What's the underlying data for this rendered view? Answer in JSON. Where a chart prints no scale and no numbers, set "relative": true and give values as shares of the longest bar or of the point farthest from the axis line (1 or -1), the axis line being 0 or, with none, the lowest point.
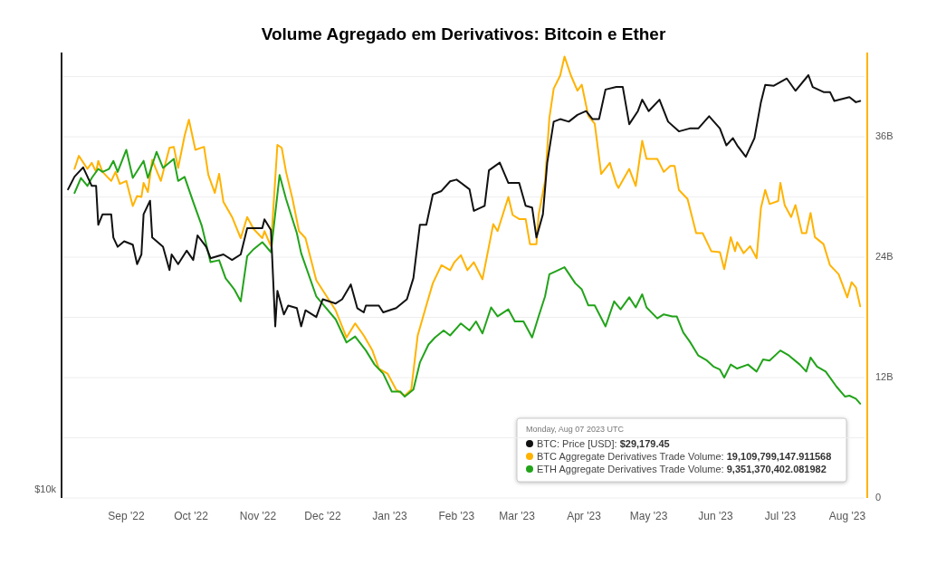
{
  "chart_data": [
    {
      "type": "line",
      "title": "Volume Agregado em Derivativos: Bitcoin e Ether",
      "relative": true,
      "xlim": [
        "2022-08-02",
        "2023-08-09"
      ],
      "legend": "bottom right",
      "legend_title": "Monday, Aug 07 2023 UTC",
      "line_style": "solid",
      "annotations": [
        "$10k",
        "$29,179.45"
      ],
      "series": [
        {
          "name": "BTC: Price [USD]:",
          "color": "#111111",
          "x": [
            "2022-08-05",
            "2022-08-08",
            "2022-08-12",
            "2022-08-16",
            "2022-08-18",
            "2022-08-19",
            "2022-08-21",
            "2022-08-25",
            "2022-08-26",
            "2022-08-28",
            "2022-08-31",
            "2022-09-04",
            "2022-09-06",
            "2022-09-08",
            "2022-09-09",
            "2022-09-12",
            "2022-09-13",
            "2022-09-18",
            "2022-09-21",
            "2022-09-22",
            "2022-09-25",
            "2022-09-29",
            "2022-10-02",
            "2022-10-04",
            "2022-10-08",
            "2022-10-10",
            "2022-10-16",
            "2022-10-20",
            "2022-10-24",
            "2022-10-27",
            "2022-10-30",
            "2022-11-03",
            "2022-11-04",
            "2022-11-07",
            "2022-11-09",
            "2022-11-10",
            "2022-11-13",
            "2022-11-15",
            "2022-11-19",
            "2022-11-21",
            "2022-11-23",
            "2022-11-28",
            "2022-12-01",
            "2022-12-07",
            "2022-12-10",
            "2022-12-14",
            "2022-12-17",
            "2022-12-20",
            "2022-12-21",
            "2022-12-27",
            "2022-12-29",
            "2023-01-04",
            "2023-01-09",
            "2023-01-12",
            "2023-01-15",
            "2023-01-18",
            "2023-01-21",
            "2023-01-25",
            "2023-01-29",
            "2023-02-01",
            "2023-02-07",
            "2023-02-09",
            "2023-02-14",
            "2023-02-16",
            "2023-02-21",
            "2023-02-25",
            "2023-03-02",
            "2023-03-05",
            "2023-03-08",
            "2023-03-10",
            "2023-03-13",
            "2023-03-15",
            "2023-03-18",
            "2023-03-21",
            "2023-03-25",
            "2023-03-29",
            "2023-04-02",
            "2023-04-05",
            "2023-04-08",
            "2023-04-11",
            "2023-04-16",
            "2023-04-19",
            "2023-04-22",
            "2023-04-26",
            "2023-04-28",
            "2023-05-01",
            "2023-05-06",
            "2023-05-10",
            "2023-05-15",
            "2023-05-20",
            "2023-05-24",
            "2023-05-29",
            "2023-06-03",
            "2023-06-06",
            "2023-06-09",
            "2023-06-11",
            "2023-06-15",
            "2023-06-19",
            "2023-06-22",
            "2023-06-24",
            "2023-06-28",
            "2023-07-04",
            "2023-07-08",
            "2023-07-14",
            "2023-07-16",
            "2023-07-21",
            "2023-07-24",
            "2023-07-26",
            "2023-08-02",
            "2023-08-05",
            "2023-08-07"
          ],
          "values": [
            0.73,
            0.76,
            0.782,
            0.738,
            0.738,
            0.646,
            0.671,
            0.671,
            0.616,
            0.594,
            0.607,
            0.599,
            0.553,
            0.576,
            0.671,
            0.703,
            0.616,
            0.594,
            0.539,
            0.576,
            0.553,
            0.585,
            0.563,
            0.621,
            0.594,
            0.567,
            0.576,
            0.563,
            0.576,
            0.638,
            0.638,
            0.638,
            0.659,
            0.634,
            0.406,
            0.49,
            0.434,
            0.455,
            0.449,
            0.406,
            0.444,
            0.428,
            0.47,
            0.46,
            0.47,
            0.505,
            0.449,
            0.439,
            0.455,
            0.455,
            0.439,
            0.449,
            0.47,
            0.52,
            0.646,
            0.646,
            0.718,
            0.726,
            0.749,
            0.753,
            0.73,
            0.679,
            0.691,
            0.775,
            0.793,
            0.745,
            0.745,
            0.691,
            0.687,
            0.616,
            0.671,
            0.793,
            0.89,
            0.896,
            0.89,
            0.906,
            0.915,
            0.896,
            0.896,
            0.966,
            0.972,
            0.972,
            0.884,
            0.915,
            0.942,
            0.915,
            0.942,
            0.89,
            0.867,
            0.874,
            0.874,
            0.903,
            0.874,
            0.834,
            0.851,
            0.834,
            0.807,
            0.851,
            0.936,
            0.977,
            0.975,
            0.992,
            0.963,
            1,
            0.972,
            0.96,
            0.96,
            0.939,
            0.948,
            0.936,
            0.939
          ]
        }
      ]
    },
    {
      "type": "line",
      "xlim": [
        "2022-08-02",
        "2023-08-09"
      ],
      "xticks": [
        {
          "value": "2022-09-01",
          "label": "Sep '22"
        },
        {
          "value": "2022-10-01",
          "label": "Oct '22"
        },
        {
          "value": "2022-11-01",
          "label": "Nov '22"
        },
        {
          "value": "2022-12-01",
          "label": "Dec '22"
        },
        {
          "value": "2023-01-01",
          "label": "Jan '23"
        },
        {
          "value": "2023-02-01",
          "label": "Feb '23"
        },
        {
          "value": "2023-03-01",
          "label": "Mar '23"
        },
        {
          "value": "2023-04-01",
          "label": "Apr '23"
        },
        {
          "value": "2023-05-01",
          "label": "May '23"
        },
        {
          "value": "2023-06-01",
          "label": "Jun '23"
        },
        {
          "value": "2023-07-01",
          "label": "Jul '23"
        },
        {
          "value": "2023-08-01",
          "label": "Aug '23"
        }
      ],
      "y2lim": [
        0,
        44.4
      ],
      "y2ticks": [
        {
          "value": 0,
          "label": "0"
        },
        {
          "value": 6,
          "label": null
        },
        {
          "value": 12,
          "label": "12B"
        },
        {
          "value": 18,
          "label": null
        },
        {
          "value": 24,
          "label": "24B"
        },
        {
          "value": 30,
          "label": null
        },
        {
          "value": 36,
          "label": "36B"
        },
        {
          "value": 42,
          "label": null
        }
      ],
      "grid": "y",
      "legend": "bottom right",
      "line_style": "solid",
      "annotations": [
        "19,109,799,147.911568",
        "9,351,370,402.081982"
      ],
      "series": [
        {
          "name": "BTC Aggregate Derivatives Trade Volume:",
          "color": "#ffb300",
          "axis": "y2",
          "x": [
            "2022-08-08",
            "2022-08-10",
            "2022-08-14",
            "2022-08-16",
            "2022-08-18",
            "2022-08-19",
            "2022-08-21",
            "2022-08-25",
            "2022-08-27",
            "2022-08-29",
            "2022-09-01",
            "2022-09-04",
            "2022-09-06",
            "2022-09-08",
            "2022-09-09",
            "2022-09-11",
            "2022-09-13",
            "2022-09-17",
            "2022-09-21",
            "2022-09-23",
            "2022-09-25",
            "2022-09-28",
            "2022-09-30",
            "2022-10-03",
            "2022-10-07",
            "2022-10-09",
            "2022-10-12",
            "2022-10-14",
            "2022-10-16",
            "2022-10-20",
            "2022-10-24",
            "2022-10-27",
            "2022-10-30",
            "2022-11-03",
            "2022-11-04",
            "2022-11-07",
            "2022-11-10",
            "2022-11-12",
            "2022-11-14",
            "2022-11-17",
            "2022-11-20",
            "2022-11-23",
            "2022-11-28",
            "2022-12-07",
            "2022-12-12",
            "2022-12-16",
            "2022-12-20",
            "2022-12-24",
            "2022-12-27",
            "2022-12-31",
            "2023-01-04",
            "2023-01-08",
            "2023-01-11",
            "2023-01-14",
            "2023-01-18",
            "2023-01-21",
            "2023-01-25",
            "2023-01-29",
            "2023-01-31",
            "2023-02-03",
            "2023-02-06",
            "2023-02-09",
            "2023-02-13",
            "2023-02-18",
            "2023-02-20",
            "2023-02-25",
            "2023-02-27",
            "2023-03-02",
            "2023-03-05",
            "2023-03-07",
            "2023-03-10",
            "2023-03-11",
            "2023-03-14",
            "2023-03-16",
            "2023-03-18",
            "2023-03-21",
            "2023-03-23",
            "2023-03-26",
            "2023-03-29",
            "2023-03-31",
            "2023-04-03",
            "2023-04-06",
            "2023-04-09",
            "2023-04-13",
            "2023-04-16",
            "2023-04-17",
            "2023-04-22",
            "2023-04-25",
            "2023-04-28",
            "2023-04-30",
            "2023-05-05",
            "2023-05-08",
            "2023-05-11",
            "2023-05-13",
            "2023-05-15",
            "2023-05-19",
            "2023-05-23",
            "2023-05-26",
            "2023-05-30",
            "2023-06-03",
            "2023-06-05",
            "2023-06-08",
            "2023-06-10",
            "2023-06-11",
            "2023-06-14",
            "2023-06-17",
            "2023-06-20",
            "2023-06-22",
            "2023-06-24",
            "2023-06-26",
            "2023-06-30",
            "2023-07-01",
            "2023-07-03",
            "2023-07-06",
            "2023-07-08",
            "2023-07-11",
            "2023-07-13",
            "2023-07-15",
            "2023-07-17",
            "2023-07-21",
            "2023-07-24",
            "2023-07-28",
            "2023-08-01",
            "2023-08-03",
            "2023-08-05",
            "2023-08-07"
          ],
          "values": [
            32.8,
            34.1,
            32.8,
            33.4,
            32.5,
            33.6,
            32.5,
            31.6,
            32.5,
            31.3,
            31.6,
            29.1,
            30.1,
            30.0,
            31.4,
            30.5,
            33.7,
            31.6,
            34.9,
            35.0,
            32.9,
            36.1,
            37.7,
            34.7,
            35.0,
            32.2,
            30.4,
            32.3,
            29.5,
            28.0,
            25.9,
            28.0,
            26.8,
            25.9,
            26.6,
            25.1,
            35.2,
            34.9,
            32.5,
            29.8,
            26.6,
            25.9,
            21.7,
            18.7,
            16.0,
            17.4,
            16.2,
            14.7,
            12.9,
            12.4,
            10.8,
            10.2,
            10.8,
            16.2,
            19.2,
            21.4,
            23.2,
            22.7,
            23.5,
            24.2,
            22.7,
            23.5,
            21.8,
            27.3,
            26.6,
            30.0,
            28.2,
            27.8,
            27.8,
            25.3,
            25.3,
            28.2,
            31.6,
            37.9,
            40.8,
            42.1,
            44.0,
            42.1,
            40.6,
            41.2,
            38.1,
            37.3,
            32.3,
            33.4,
            31.3,
            30.9,
            32.8,
            31.1,
            35.6,
            33.8,
            33.8,
            32.5,
            33.1,
            33.1,
            30.7,
            29.8,
            26.4,
            26.4,
            24.6,
            24.5,
            22.8,
            26.0,
            24.6,
            25.5,
            24.4,
            25.1,
            23.9,
            28.9,
            30.7,
            29.3,
            29.6,
            31.4,
            29.2,
            28.0,
            29.2,
            26.4,
            26.4,
            28.4,
            26.0,
            25.3,
            23.2,
            22.3,
            20.0,
            21.5,
            21.0,
            19.1
          ]
        },
        {
          "name": "ETH Aggregate Derivatives Trade Volume:",
          "color": "#22a31a",
          "axis": "y2",
          "x": [
            "2022-08-08",
            "2022-08-11",
            "2022-08-14",
            "2022-08-16",
            "2022-08-19",
            "2022-08-21",
            "2022-08-24",
            "2022-08-26",
            "2022-08-28",
            "2022-09-01",
            "2022-09-04",
            "2022-09-09",
            "2022-09-11",
            "2022-09-15",
            "2022-09-18",
            "2022-09-23",
            "2022-09-25",
            "2022-09-28",
            "2022-10-02",
            "2022-10-06",
            "2022-10-10",
            "2022-10-14",
            "2022-10-17",
            "2022-10-21",
            "2022-10-24",
            "2022-10-27",
            "2022-10-30",
            "2022-11-03",
            "2022-11-07",
            "2022-11-11",
            "2022-11-14",
            "2022-11-19",
            "2022-11-21",
            "2022-11-28",
            "2022-12-07",
            "2022-12-12",
            "2022-12-16",
            "2022-12-21",
            "2022-12-25",
            "2022-12-29",
            "2023-01-02",
            "2023-01-06",
            "2023-01-08",
            "2023-01-12",
            "2023-01-15",
            "2023-01-19",
            "2023-01-22",
            "2023-01-26",
            "2023-01-29",
            "2023-02-03",
            "2023-02-07",
            "2023-02-10",
            "2023-02-13",
            "2023-02-17",
            "2023-02-20",
            "2023-02-25",
            "2023-02-28",
            "2023-03-04",
            "2023-03-08",
            "2023-03-11",
            "2023-03-14",
            "2023-03-16",
            "2023-03-19",
            "2023-03-23",
            "2023-03-28",
            "2023-03-31",
            "2023-04-03",
            "2023-04-06",
            "2023-04-11",
            "2023-04-15",
            "2023-04-18",
            "2023-04-22",
            "2023-04-25",
            "2023-04-28",
            "2023-04-30",
            "2023-05-05",
            "2023-05-08",
            "2023-05-12",
            "2023-05-14",
            "2023-05-17",
            "2023-05-20",
            "2023-05-24",
            "2023-05-28",
            "2023-05-31",
            "2023-06-03",
            "2023-06-05",
            "2023-06-08",
            "2023-06-11",
            "2023-06-16",
            "2023-06-20",
            "2023-06-23",
            "2023-06-26",
            "2023-07-01",
            "2023-07-05",
            "2023-07-10",
            "2023-07-13",
            "2023-07-15",
            "2023-07-18",
            "2023-07-22",
            "2023-07-27",
            "2023-07-31",
            "2023-08-02",
            "2023-08-05",
            "2023-08-07"
          ],
          "values": [
            30.4,
            31.9,
            31.1,
            31.9,
            32.8,
            32.5,
            32.8,
            33.6,
            32.5,
            34.7,
            31.9,
            33.6,
            31.9,
            34.5,
            32.9,
            33.8,
            31.6,
            32.0,
            29.5,
            27.1,
            23.5,
            23.7,
            21.9,
            20.8,
            19.6,
            24.1,
            24.8,
            25.5,
            24.5,
            32.2,
            29.8,
            26.4,
            24.4,
            20.1,
            17.8,
            15.5,
            16.1,
            14.7,
            13.3,
            12.4,
            10.6,
            10.6,
            10.1,
            10.8,
            13.5,
            15.3,
            16.0,
            16.7,
            16.2,
            17.4,
            16.7,
            17.6,
            16.4,
            19.0,
            18.1,
            18.8,
            17.6,
            17.6,
            16.0,
            18.1,
            20.1,
            22.3,
            22.6,
            23.0,
            21.4,
            20.8,
            19.2,
            19.2,
            17.1,
            19.6,
            18.8,
            20.0,
            19.0,
            20.3,
            19.0,
            17.9,
            18.3,
            18.1,
            18.1,
            16.5,
            15.6,
            14.2,
            13.7,
            13.1,
            12.8,
            12.0,
            13.3,
            12.9,
            13.3,
            12.6,
            13.8,
            13.7,
            14.7,
            14.2,
            13.3,
            12.6,
            14.0,
            13.1,
            12.6,
            11.1,
            10.1,
            10.2,
            9.9,
            9.4
          ]
        }
      ]
    }
  ]
}
